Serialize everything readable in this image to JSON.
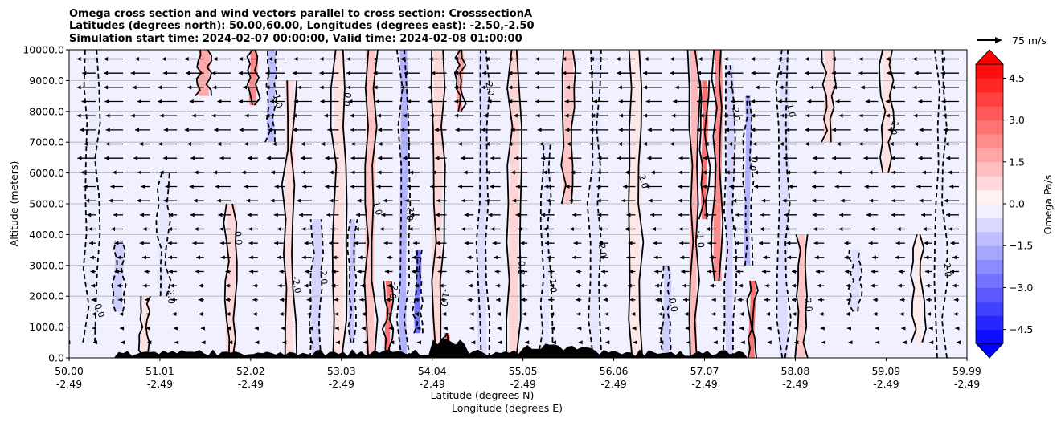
{
  "chart_data": {
    "type": "heatmap",
    "title_lines": [
      "Omega cross section and wind vectors parallel to cross section: CrosssectionA",
      "Latitudes (degrees north): 50.00,60.00, Longitudes (degrees east): -2.50,-2.50",
      "Simulation start time: 2024-02-07 00:00:00, Valid time: 2024-02-08 01:00:00"
    ],
    "ylabel": "Altitude (meters)",
    "xlabel_lines": [
      "Latitude (degrees N)",
      "Longitude (degrees E)"
    ],
    "ylim": [
      0,
      10000
    ],
    "y_ticks": [
      "0.0",
      "1000.0",
      "2000.0",
      "3000.0",
      "4000.0",
      "5000.0",
      "6000.0",
      "7000.0",
      "8000.0",
      "9000.0",
      "10000.0"
    ],
    "x_ticks": [
      {
        "lat": "50.00",
        "lon": "-2.49"
      },
      {
        "lat": "51.01",
        "lon": "-2.49"
      },
      {
        "lat": "52.02",
        "lon": "-2.49"
      },
      {
        "lat": "53.03",
        "lon": "-2.49"
      },
      {
        "lat": "54.04",
        "lon": "-2.49"
      },
      {
        "lat": "55.05",
        "lon": "-2.49"
      },
      {
        "lat": "56.06",
        "lon": "-2.49"
      },
      {
        "lat": "57.07",
        "lon": "-2.49"
      },
      {
        "lat": "58.08",
        "lon": "-2.49"
      },
      {
        "lat": "59.09",
        "lon": "-2.49"
      },
      {
        "lat": "59.99",
        "lon": "-2.49"
      }
    ],
    "colorbar": {
      "label": "Omega Pa/s",
      "min": -5.0,
      "max": 5.0,
      "ticks": [
        "−4.5",
        "−3.0",
        "−1.5",
        "0.0",
        "1.5",
        "3.0",
        "4.5"
      ],
      "tick_values": [
        -4.5,
        -3.0,
        -1.5,
        0.0,
        1.5,
        3.0,
        4.5
      ],
      "low_color": "#0000ff",
      "high_color": "#ff0000"
    },
    "quiver_key": {
      "label": "75 m/s"
    },
    "contour_labels": [
      "0.0",
      "-1.0",
      "1.0",
      "-2.0",
      "2.0"
    ],
    "omega_columns": [
      {
        "lat": 50.25,
        "w": 0.12,
        "value": -0.4,
        "ybot": 500,
        "ytop": 10000
      },
      {
        "lat": 50.55,
        "w": 0.1,
        "value": -1.0,
        "ybot": 1500,
        "ytop": 3800
      },
      {
        "lat": 50.85,
        "w": 0.08,
        "value": 0.6,
        "ybot": 0,
        "ytop": 2000
      },
      {
        "lat": 51.05,
        "w": 0.1,
        "value": -0.5,
        "ybot": 2000,
        "ytop": 6000
      },
      {
        "lat": 51.5,
        "w": 0.12,
        "value": 1.8,
        "ybot": 8500,
        "ytop": 10000
      },
      {
        "lat": 51.8,
        "w": 0.1,
        "value": 0.8,
        "ybot": 0,
        "ytop": 5000
      },
      {
        "lat": 52.05,
        "w": 0.08,
        "value": 2.5,
        "ybot": 8200,
        "ytop": 10000
      },
      {
        "lat": 52.25,
        "w": 0.08,
        "value": -1.4,
        "ybot": 7000,
        "ytop": 10000
      },
      {
        "lat": 52.45,
        "w": 0.1,
        "value": 0.7,
        "ybot": 0,
        "ytop": 9000
      },
      {
        "lat": 52.75,
        "w": 0.1,
        "value": -0.9,
        "ybot": 0,
        "ytop": 4500
      },
      {
        "lat": 53.0,
        "w": 0.12,
        "value": 0.6,
        "ybot": 0,
        "ytop": 10000
      },
      {
        "lat": 53.15,
        "w": 0.06,
        "value": -1.2,
        "ybot": 500,
        "ytop": 4500
      },
      {
        "lat": 53.35,
        "w": 0.1,
        "value": 1.2,
        "ybot": 0,
        "ytop": 10000
      },
      {
        "lat": 53.55,
        "w": 0.06,
        "value": 3.0,
        "ybot": 0,
        "ytop": 2500
      },
      {
        "lat": 53.72,
        "w": 0.08,
        "value": -1.6,
        "ybot": 0,
        "ytop": 10000
      },
      {
        "lat": 53.88,
        "w": 0.06,
        "value": -3.0,
        "ybot": 800,
        "ytop": 3500
      },
      {
        "lat": 54.1,
        "w": 0.1,
        "value": 0.8,
        "ybot": 0,
        "ytop": 10000
      },
      {
        "lat": 54.2,
        "w": 0.05,
        "value": 3.5,
        "ybot": 0,
        "ytop": 800
      },
      {
        "lat": 54.35,
        "w": 0.06,
        "value": 2.0,
        "ybot": 8000,
        "ytop": 10000
      },
      {
        "lat": 54.6,
        "w": 0.1,
        "value": -0.7,
        "ybot": 0,
        "ytop": 10000
      },
      {
        "lat": 54.95,
        "w": 0.1,
        "value": 0.9,
        "ybot": 0,
        "ytop": 10000
      },
      {
        "lat": 55.3,
        "w": 0.1,
        "value": -0.5,
        "ybot": 0,
        "ytop": 7000
      },
      {
        "lat": 55.55,
        "w": 0.1,
        "value": 1.2,
        "ybot": 5000,
        "ytop": 10000
      },
      {
        "lat": 55.85,
        "w": 0.1,
        "value": -0.5,
        "ybot": 0,
        "ytop": 10000
      },
      {
        "lat": 56.3,
        "w": 0.12,
        "value": 0.5,
        "ybot": 0,
        "ytop": 10000
      },
      {
        "lat": 56.65,
        "w": 0.08,
        "value": -1.0,
        "ybot": 0,
        "ytop": 3000
      },
      {
        "lat": 56.95,
        "w": 0.08,
        "value": 1.5,
        "ybot": 0,
        "ytop": 10000
      },
      {
        "lat": 57.07,
        "w": 0.06,
        "value": 3.0,
        "ybot": 4500,
        "ytop": 9000
      },
      {
        "lat": 57.22,
        "w": 0.08,
        "value": 2.5,
        "ybot": 2500,
        "ytop": 10000
      },
      {
        "lat": 57.35,
        "w": 0.08,
        "value": -0.9,
        "ybot": 0,
        "ytop": 9500
      },
      {
        "lat": 57.55,
        "w": 0.06,
        "value": -1.6,
        "ybot": 3000,
        "ytop": 8500
      },
      {
        "lat": 57.6,
        "w": 0.06,
        "value": 3.0,
        "ybot": 0,
        "ytop": 2500
      },
      {
        "lat": 57.95,
        "w": 0.1,
        "value": -0.7,
        "ybot": 0,
        "ytop": 10000
      },
      {
        "lat": 58.15,
        "w": 0.08,
        "value": 1.2,
        "ybot": 0,
        "ytop": 4000
      },
      {
        "lat": 58.45,
        "w": 0.1,
        "value": 0.8,
        "ybot": 7000,
        "ytop": 10000
      },
      {
        "lat": 58.75,
        "w": 0.1,
        "value": -0.6,
        "ybot": 1500,
        "ytop": 3500
      },
      {
        "lat": 59.1,
        "w": 0.1,
        "value": 0.6,
        "ybot": 6000,
        "ytop": 10000
      },
      {
        "lat": 59.45,
        "w": 0.1,
        "value": 0.4,
        "ybot": 500,
        "ytop": 4000
      },
      {
        "lat": 59.7,
        "w": 0.08,
        "value": -0.4,
        "ybot": 0,
        "ytop": 10000
      }
    ]
  }
}
